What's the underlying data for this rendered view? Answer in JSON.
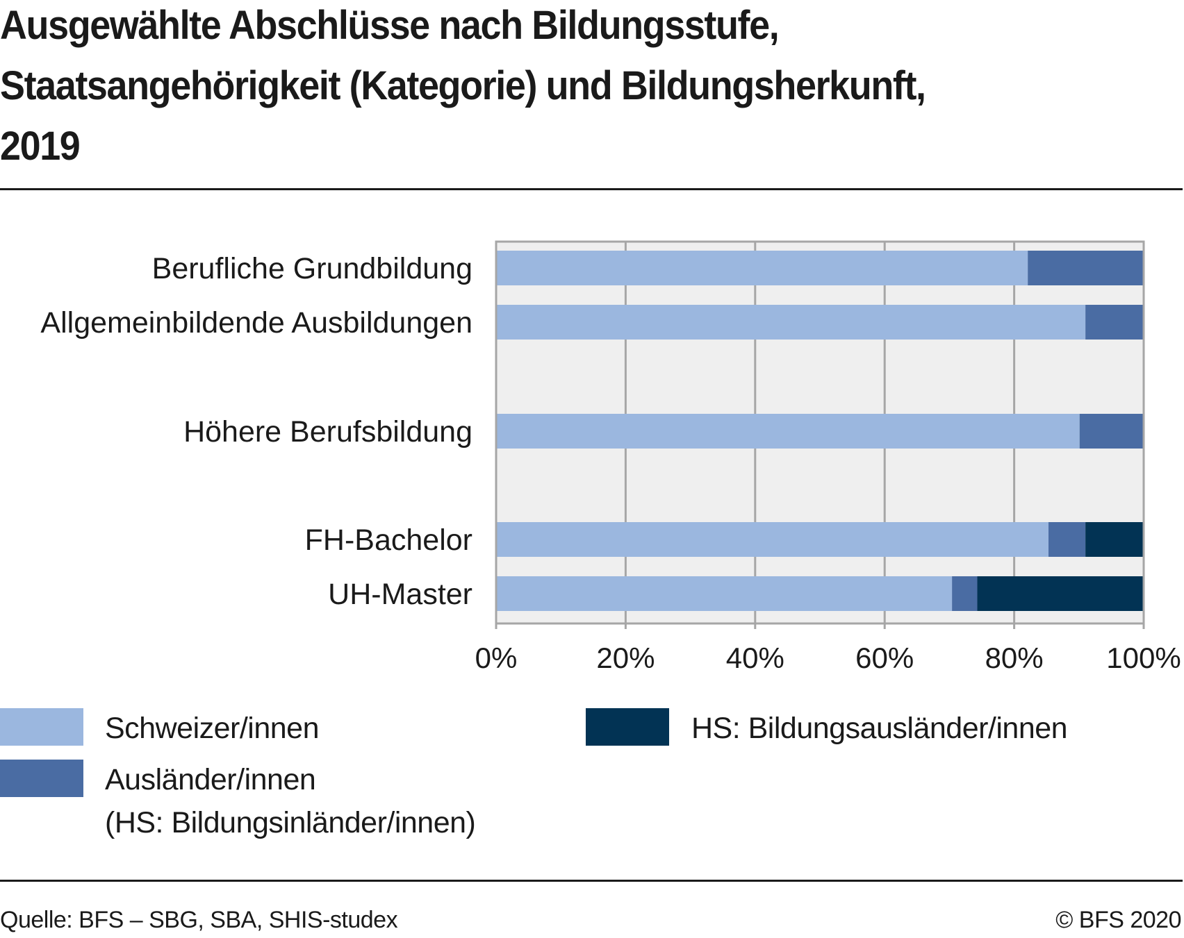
{
  "title": {
    "lines": [
      "Ausgewählte Abschlüsse nach Bildungsstufe,",
      "Staatsangehörigkeit (Kategorie) und Bildungsherkunft,",
      "2019"
    ]
  },
  "footer": {
    "source": "Quelle: BFS – SBG, SBA, SHIS-studex",
    "copyright": "© BFS 2020"
  },
  "colors": {
    "schweizer": "#9bb7df",
    "auslaender": "#4a6ca3",
    "bildungsauslaender": "#023354",
    "plot_bg": "#efefef",
    "grid": "#a6a6a6"
  },
  "legend": {
    "items": [
      {
        "label": "Schweizer/innen",
        "label2": ""
      },
      {
        "label": "Ausländer/innen",
        "label2": "(HS: Bildungsinländer/innen)"
      },
      {
        "label": "HS: Bildungsausländer/innen",
        "label2": ""
      }
    ]
  },
  "chart_data": {
    "type": "bar",
    "orientation": "horizontal",
    "stacked": true,
    "title": "Ausgewählte Abschlüsse nach Bildungsstufe, Staatsangehörigkeit (Kategorie) und Bildungsherkunft, 2019",
    "xlabel": "",
    "ylabel": "",
    "xlim": [
      0,
      100
    ],
    "x_ticks": [
      "0%",
      "20%",
      "40%",
      "60%",
      "80%",
      "100%"
    ],
    "grid": true,
    "legend_position": "bottom",
    "categories": [
      "Berufliche Grundbildung",
      "Allgemeinbildende Ausbildungen",
      "Höhere Berufsbildung",
      "FH-Bachelor",
      "UH-Master"
    ],
    "series": [
      {
        "name": "Schweizer/innen",
        "values": [
          82.1,
          91.0,
          90.1,
          85.3,
          70.4
        ]
      },
      {
        "name": "Ausländer/innen (HS: Bildungsinländer/innen)",
        "values": [
          17.9,
          9.0,
          9.9,
          5.7,
          3.9
        ]
      },
      {
        "name": "HS: Bildungsausländer/innen",
        "values": [
          0,
          0,
          0,
          9.0,
          25.7
        ]
      }
    ]
  }
}
